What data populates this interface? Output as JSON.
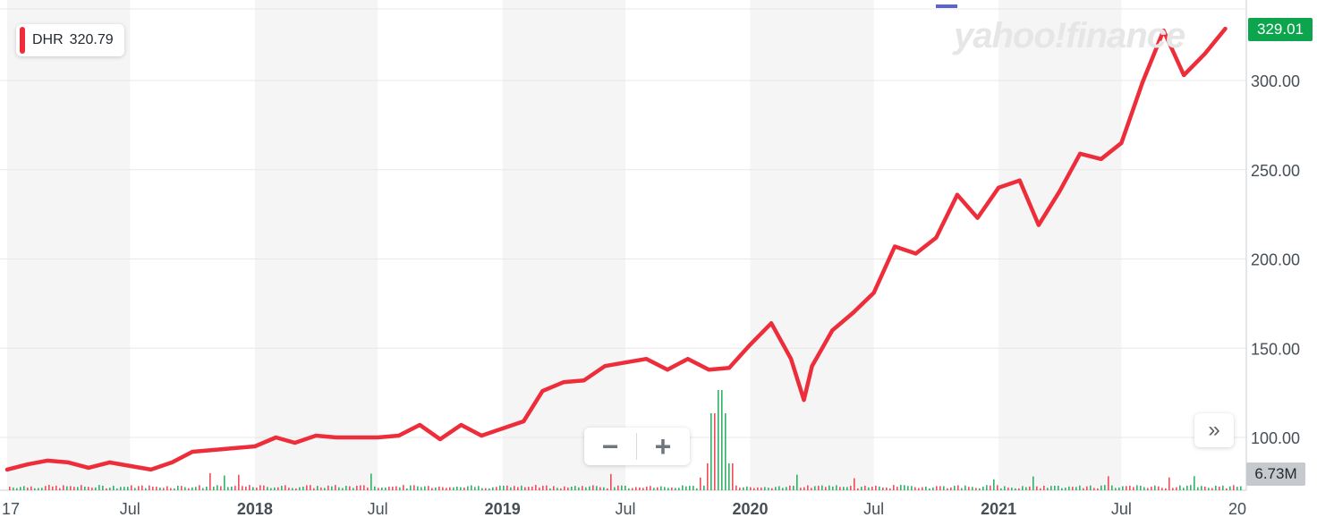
{
  "badge": {
    "symbol": "DHR",
    "value": "320.79"
  },
  "watermark": "yahoo!finance",
  "last_price": "329.01",
  "last_volume": "6.73M",
  "controls": {
    "zoom_out": "−",
    "zoom_in": "+",
    "expand": "»"
  },
  "colors": {
    "line": "#ee2d3b",
    "price_tag": "#0ca54e",
    "volume_up": "#0ca54e",
    "volume_down": "#ee2d3b",
    "shade": "#f5f5f5"
  },
  "chart_data": {
    "type": "line",
    "title": "",
    "xlabel": "",
    "ylabel": "",
    "ylim": [
      80,
      340
    ],
    "x_range": [
      "2017-01-01",
      "2021-12-31"
    ],
    "y_ticks": [
      "100.00",
      "150.00",
      "200.00",
      "250.00",
      "300.00"
    ],
    "x_ticks": [
      {
        "label": "17",
        "date": "2017-01-01"
      },
      {
        "label": "Jul",
        "date": "2017-07-01"
      },
      {
        "label": "2018",
        "date": "2018-01-01"
      },
      {
        "label": "Jul",
        "date": "2018-07-01"
      },
      {
        "label": "2019",
        "date": "2019-01-01"
      },
      {
        "label": "Jul",
        "date": "2019-07-01"
      },
      {
        "label": "2020",
        "date": "2020-01-01"
      },
      {
        "label": "Jul",
        "date": "2020-07-01"
      },
      {
        "label": "2021",
        "date": "2021-01-01"
      },
      {
        "label": "Jul",
        "date": "2021-07-01"
      },
      {
        "label": "20",
        "date": "2022-01-01"
      }
    ],
    "shaded_periods": [
      [
        "2017-01-01",
        "2017-07-01"
      ],
      [
        "2018-01-01",
        "2018-07-01"
      ],
      [
        "2019-01-01",
        "2019-07-01"
      ],
      [
        "2020-01-01",
        "2020-07-01"
      ],
      [
        "2021-01-01",
        "2021-07-01"
      ]
    ],
    "series": [
      {
        "x": [
          "2017-01-01",
          "2017-02-01",
          "2017-03-01",
          "2017-04-01",
          "2017-05-01",
          "2017-06-01",
          "2017-07-01",
          "2017-08-01",
          "2017-09-01",
          "2017-10-01",
          "2017-11-01",
          "2017-12-01",
          "2018-01-01",
          "2018-02-01",
          "2018-03-01",
          "2018-04-01",
          "2018-05-01",
          "2018-06-01",
          "2018-07-01",
          "2018-08-01",
          "2018-09-01",
          "2018-10-01",
          "2018-11-01",
          "2018-12-01",
          "2019-01-01",
          "2019-02-01",
          "2019-03-01",
          "2019-04-01",
          "2019-05-01",
          "2019-06-01",
          "2019-07-01",
          "2019-08-01",
          "2019-09-01",
          "2019-10-01",
          "2019-11-01",
          "2019-12-01",
          "2020-01-01",
          "2020-02-01",
          "2020-03-01",
          "2020-03-20",
          "2020-04-01",
          "2020-05-01",
          "2020-06-01",
          "2020-07-01",
          "2020-08-01",
          "2020-09-01",
          "2020-10-01",
          "2020-11-01",
          "2020-12-01",
          "2021-01-01",
          "2021-02-01",
          "2021-03-01",
          "2021-04-01",
          "2021-05-01",
          "2021-06-01",
          "2021-07-01",
          "2021-08-01",
          "2021-09-01",
          "2021-10-01",
          "2021-11-01",
          "2021-12-01"
        ],
        "y": [
          82,
          85,
          87,
          86,
          83,
          86,
          84,
          82,
          86,
          92,
          93,
          94,
          95,
          100,
          97,
          101,
          100,
          100,
          100,
          101,
          107,
          99,
          107,
          101,
          105,
          109,
          126,
          131,
          132,
          140,
          142,
          144,
          138,
          144,
          138,
          139,
          152,
          164,
          144,
          121,
          140,
          160,
          170,
          181,
          207,
          203,
          212,
          236,
          223,
          240,
          244,
          219,
          238,
          259,
          256,
          265,
          299,
          328,
          303,
          315,
          329
        ]
      }
    ],
    "volume_peak": {
      "date": "2019-11-15",
      "note": "spike"
    }
  }
}
